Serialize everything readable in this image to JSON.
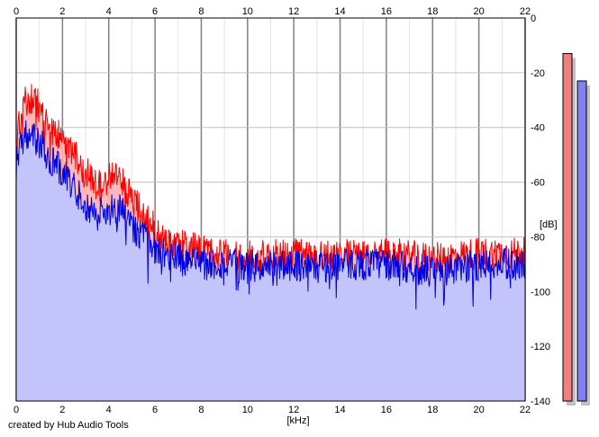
{
  "credit": "created by Hub Audio Tools",
  "colors": {
    "background": "#ffffff",
    "grid": "#c0c0c0",
    "major_grid": "#808080",
    "red_line": "#ff0000",
    "red_fill": "#ffb0b0",
    "blue_line": "#0000e0",
    "blue_fill": "#c4c4fc",
    "meter_red": "#f08080",
    "meter_blue": "#8080f0"
  },
  "chart_data": {
    "type": "area",
    "title": "",
    "xlabel": "[kHz]",
    "ylabel": "[dB]",
    "xlim": [
      0,
      22
    ],
    "ylim": [
      -140,
      0
    ],
    "x_ticks": [
      "0",
      "2",
      "4",
      "6",
      "8",
      "10",
      "12",
      "14",
      "16",
      "18",
      "20",
      "22"
    ],
    "y_ticks": [
      "0",
      "-20",
      "-40",
      "-60",
      "-80",
      "-100",
      "-120",
      "-140"
    ],
    "grid": true,
    "series": [
      {
        "color": "red",
        "x": [
          0,
          0.3,
          0.6,
          0.9,
          1.2,
          1.5,
          2,
          2.5,
          3,
          3.5,
          4,
          4.5,
          5,
          5.5,
          6,
          6.5,
          7,
          7.5,
          8,
          9,
          10,
          11,
          12,
          13,
          14,
          15,
          16,
          17,
          18,
          19,
          20,
          21,
          22
        ],
        "values": [
          -45,
          -32,
          -29,
          -31,
          -37,
          -40,
          -44,
          -50,
          -56,
          -62,
          -58,
          -58,
          -66,
          -72,
          -77,
          -82,
          -82,
          -84,
          -85,
          -86,
          -87,
          -87,
          -86,
          -87,
          -86,
          -87,
          -86,
          -87,
          -88,
          -87,
          -86,
          -86,
          -86
        ]
      },
      {
        "color": "blue",
        "x": [
          0,
          0.3,
          0.6,
          0.9,
          1.2,
          1.5,
          2,
          2.5,
          3,
          3.5,
          4,
          4.5,
          5,
          5.5,
          6,
          6.5,
          7,
          7.5,
          8,
          9,
          10,
          11,
          12,
          13,
          14,
          15,
          16,
          17,
          18,
          19,
          20,
          21,
          22
        ],
        "values": [
          -52,
          -44,
          -42,
          -44,
          -48,
          -52,
          -56,
          -62,
          -68,
          -72,
          -70,
          -70,
          -76,
          -80,
          -84,
          -87,
          -88,
          -89,
          -90,
          -90,
          -91,
          -91,
          -90,
          -91,
          -90,
          -90,
          -90,
          -91,
          -93,
          -92,
          -90,
          -90,
          -90
        ]
      }
    ],
    "level_meters": [
      {
        "color": "red",
        "value": -13
      },
      {
        "color": "blue",
        "value": -23
      }
    ]
  }
}
